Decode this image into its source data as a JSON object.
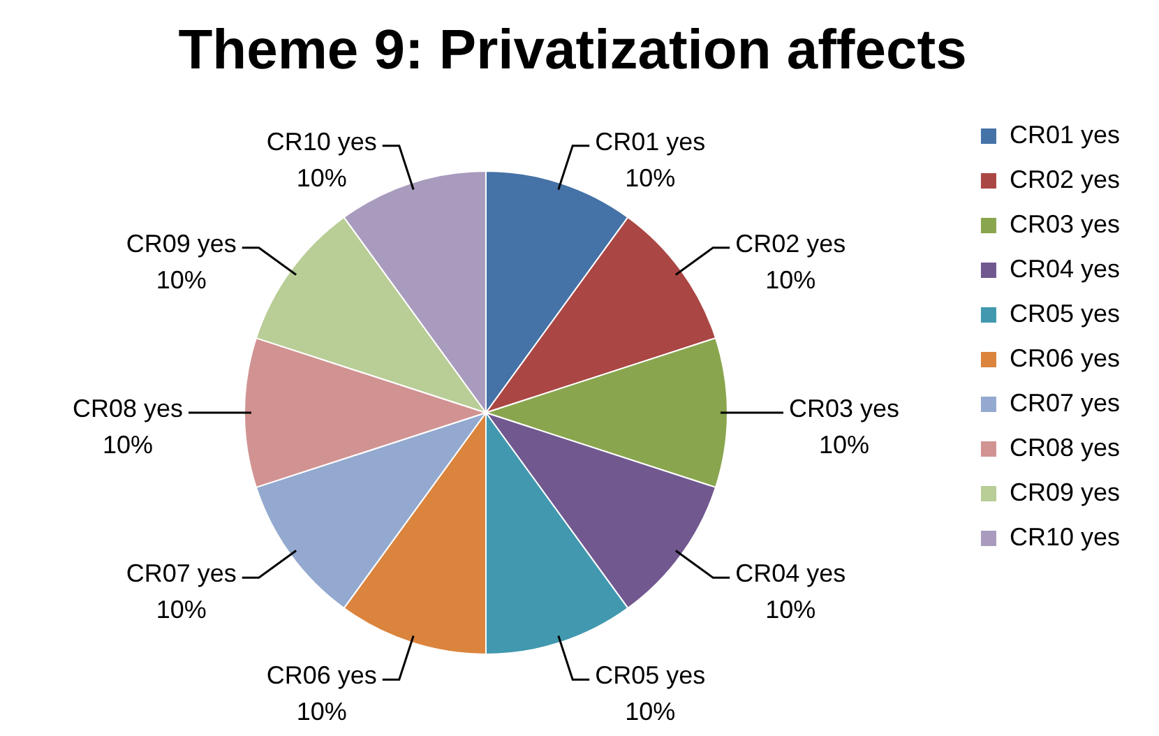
{
  "chart_data": {
    "type": "pie",
    "title": "Theme 9: Privatization affects",
    "categories": [
      "CR01 yes",
      "CR02 yes",
      "CR03 yes",
      "CR04 yes",
      "CR05 yes",
      "CR06 yes",
      "CR07 yes",
      "CR08 yes",
      "CR09 yes",
      "CR10 yes"
    ],
    "values": [
      10,
      10,
      10,
      10,
      10,
      10,
      10,
      10,
      10,
      10
    ],
    "colors": [
      "#4572a7",
      "#aa4643",
      "#89a54e",
      "#71588f",
      "#4198af",
      "#db843d",
      "#93a9cf",
      "#d19392",
      "#b9cd96",
      "#a99bbd"
    ],
    "value_labels": [
      "10%",
      "10%",
      "10%",
      "10%",
      "10%",
      "10%",
      "10%",
      "10%",
      "10%",
      "10%"
    ],
    "legend": "right"
  }
}
